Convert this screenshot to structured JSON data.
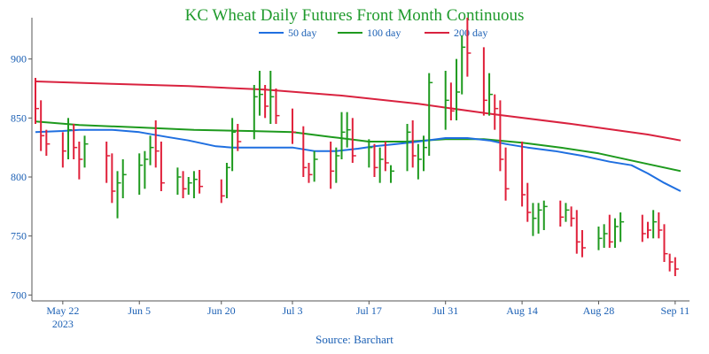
{
  "chart_data": {
    "type": "ohlc",
    "title": "KC Wheat Daily Futures Front Month Continuous",
    "source": "Source: Barchart",
    "colors": {
      "up": "#1e9a1e",
      "down": "#e0203a",
      "ma50": "#1f6fe0",
      "ma100": "#1e9a1e",
      "ma200": "#d9223f"
    },
    "legend": [
      {
        "label": "50 day",
        "color": "#1f6fe0",
        "key": "ma50"
      },
      {
        "label": "100 day",
        "color": "#1e9a1e",
        "key": "ma100"
      },
      {
        "label": "200 day",
        "color": "#d9223f",
        "key": "ma200"
      }
    ],
    "legend_position": "top-center",
    "x_start": "2023-05-17",
    "xlim": [
      "2023-05-17",
      "2023-09-12"
    ],
    "x_ticks": [
      {
        "date": "2023-05-22",
        "label": "May 22",
        "sub": "2023"
      },
      {
        "date": "2023-06-05",
        "label": "Jun 5"
      },
      {
        "date": "2023-06-20",
        "label": "Jun 20"
      },
      {
        "date": "2023-07-03",
        "label": "Jul 3"
      },
      {
        "date": "2023-07-17",
        "label": "Jul 17"
      },
      {
        "date": "2023-07-31",
        "label": "Jul 31"
      },
      {
        "date": "2023-08-14",
        "label": "Aug 14"
      },
      {
        "date": "2023-08-28",
        "label": "Aug 28"
      },
      {
        "date": "2023-09-11",
        "label": "Sep 11"
      }
    ],
    "ylim": [
      695,
      935
    ],
    "y_ticks": [
      700,
      750,
      800,
      850,
      900
    ],
    "grid": false,
    "bars": [
      {
        "date": "2023-05-17",
        "h": 884,
        "l": 845,
        "c": 858,
        "dir": "down"
      },
      {
        "date": "2023-05-18",
        "h": 865,
        "l": 822,
        "c": 835,
        "dir": "down"
      },
      {
        "date": "2023-05-19",
        "h": 840,
        "l": 818,
        "c": 828,
        "dir": "down"
      },
      {
        "date": "2023-05-22",
        "h": 838,
        "l": 808,
        "c": 822,
        "dir": "down"
      },
      {
        "date": "2023-05-23",
        "h": 850,
        "l": 815,
        "c": 840,
        "dir": "up"
      },
      {
        "date": "2023-05-24",
        "h": 845,
        "l": 815,
        "c": 825,
        "dir": "down"
      },
      {
        "date": "2023-05-25",
        "h": 830,
        "l": 798,
        "c": 815,
        "dir": "down"
      },
      {
        "date": "2023-05-26",
        "h": 835,
        "l": 808,
        "c": 828,
        "dir": "up"
      },
      {
        "date": "2023-05-30",
        "h": 830,
        "l": 795,
        "c": 818,
        "dir": "down"
      },
      {
        "date": "2023-05-31",
        "h": 820,
        "l": 778,
        "c": 788,
        "dir": "down"
      },
      {
        "date": "2023-06-01",
        "h": 805,
        "l": 765,
        "c": 795,
        "dir": "up"
      },
      {
        "date": "2023-06-02",
        "h": 815,
        "l": 782,
        "c": 802,
        "dir": "up"
      },
      {
        "date": "2023-06-05",
        "h": 820,
        "l": 785,
        "c": 810,
        "dir": "up"
      },
      {
        "date": "2023-06-06",
        "h": 822,
        "l": 790,
        "c": 815,
        "dir": "up"
      },
      {
        "date": "2023-06-07",
        "h": 835,
        "l": 810,
        "c": 825,
        "dir": "up"
      },
      {
        "date": "2023-06-08",
        "h": 848,
        "l": 808,
        "c": 822,
        "dir": "down"
      },
      {
        "date": "2023-06-09",
        "h": 830,
        "l": 788,
        "c": 795,
        "dir": "down"
      },
      {
        "date": "2023-06-12",
        "h": 808,
        "l": 785,
        "c": 800,
        "dir": "up"
      },
      {
        "date": "2023-06-13",
        "h": 805,
        "l": 782,
        "c": 790,
        "dir": "down"
      },
      {
        "date": "2023-06-14",
        "h": 800,
        "l": 785,
        "c": 795,
        "dir": "up"
      },
      {
        "date": "2023-06-15",
        "h": 805,
        "l": 782,
        "c": 798,
        "dir": "up"
      },
      {
        "date": "2023-06-16",
        "h": 806,
        "l": 786,
        "c": 792,
        "dir": "down"
      },
      {
        "date": "2023-06-20",
        "h": 798,
        "l": 778,
        "c": 784,
        "dir": "down"
      },
      {
        "date": "2023-06-21",
        "h": 812,
        "l": 782,
        "c": 808,
        "dir": "up"
      },
      {
        "date": "2023-06-22",
        "h": 850,
        "l": 805,
        "c": 838,
        "dir": "up"
      },
      {
        "date": "2023-06-23",
        "h": 845,
        "l": 822,
        "c": 830,
        "dir": "down"
      },
      {
        "date": "2023-06-26",
        "h": 878,
        "l": 832,
        "c": 868,
        "dir": "up"
      },
      {
        "date": "2023-06-27",
        "h": 890,
        "l": 852,
        "c": 870,
        "dir": "up"
      },
      {
        "date": "2023-06-28",
        "h": 878,
        "l": 850,
        "c": 860,
        "dir": "down"
      },
      {
        "date": "2023-06-29",
        "h": 890,
        "l": 845,
        "c": 868,
        "dir": "up"
      },
      {
        "date": "2023-06-30",
        "h": 875,
        "l": 845,
        "c": 852,
        "dir": "down"
      },
      {
        "date": "2023-07-03",
        "h": 858,
        "l": 828,
        "c": 838,
        "dir": "down"
      },
      {
        "date": "2023-07-05",
        "h": 843,
        "l": 800,
        "c": 808,
        "dir": "down"
      },
      {
        "date": "2023-07-06",
        "h": 812,
        "l": 795,
        "c": 802,
        "dir": "down"
      },
      {
        "date": "2023-07-07",
        "h": 822,
        "l": 796,
        "c": 815,
        "dir": "up"
      },
      {
        "date": "2023-07-10",
        "h": 830,
        "l": 790,
        "c": 805,
        "dir": "down"
      },
      {
        "date": "2023-07-11",
        "h": 825,
        "l": 795,
        "c": 818,
        "dir": "up"
      },
      {
        "date": "2023-07-12",
        "h": 855,
        "l": 815,
        "c": 838,
        "dir": "up"
      },
      {
        "date": "2023-07-13",
        "h": 855,
        "l": 825,
        "c": 840,
        "dir": "up"
      },
      {
        "date": "2023-07-14",
        "h": 850,
        "l": 812,
        "c": 818,
        "dir": "down"
      },
      {
        "date": "2023-07-17",
        "h": 832,
        "l": 808,
        "c": 825,
        "dir": "up"
      },
      {
        "date": "2023-07-18",
        "h": 828,
        "l": 800,
        "c": 808,
        "dir": "down"
      },
      {
        "date": "2023-07-19",
        "h": 825,
        "l": 795,
        "c": 815,
        "dir": "up"
      },
      {
        "date": "2023-07-20",
        "h": 830,
        "l": 805,
        "c": 812,
        "dir": "down"
      },
      {
        "date": "2023-07-21",
        "h": 810,
        "l": 795,
        "c": 805,
        "dir": "up"
      },
      {
        "date": "2023-07-24",
        "h": 845,
        "l": 805,
        "c": 838,
        "dir": "up"
      },
      {
        "date": "2023-07-25",
        "h": 848,
        "l": 808,
        "c": 818,
        "dir": "down"
      },
      {
        "date": "2023-07-26",
        "h": 828,
        "l": 798,
        "c": 815,
        "dir": "up"
      },
      {
        "date": "2023-07-27",
        "h": 835,
        "l": 805,
        "c": 825,
        "dir": "up"
      },
      {
        "date": "2023-07-28",
        "h": 888,
        "l": 818,
        "c": 880,
        "dir": "up"
      },
      {
        "date": "2023-07-31",
        "h": 890,
        "l": 840,
        "c": 865,
        "dir": "up"
      },
      {
        "date": "2023-08-01",
        "h": 880,
        "l": 848,
        "c": 856,
        "dir": "down"
      },
      {
        "date": "2023-08-02",
        "h": 900,
        "l": 848,
        "c": 872,
        "dir": "up"
      },
      {
        "date": "2023-08-03",
        "h": 920,
        "l": 870,
        "c": 910,
        "dir": "up"
      },
      {
        "date": "2023-08-04",
        "h": 935,
        "l": 885,
        "c": 905,
        "dir": "down"
      },
      {
        "date": "2023-08-07",
        "h": 910,
        "l": 852,
        "c": 865,
        "dir": "down"
      },
      {
        "date": "2023-08-08",
        "h": 888,
        "l": 852,
        "c": 870,
        "dir": "up"
      },
      {
        "date": "2023-08-09",
        "h": 870,
        "l": 840,
        "c": 858,
        "dir": "down"
      },
      {
        "date": "2023-08-10",
        "h": 865,
        "l": 805,
        "c": 815,
        "dir": "down"
      },
      {
        "date": "2023-08-11",
        "h": 825,
        "l": 780,
        "c": 790,
        "dir": "down"
      },
      {
        "date": "2023-08-14",
        "h": 830,
        "l": 775,
        "c": 785,
        "dir": "down"
      },
      {
        "date": "2023-08-15",
        "h": 795,
        "l": 762,
        "c": 770,
        "dir": "down"
      },
      {
        "date": "2023-08-16",
        "h": 778,
        "l": 750,
        "c": 765,
        "dir": "up"
      },
      {
        "date": "2023-08-17",
        "h": 778,
        "l": 752,
        "c": 772,
        "dir": "up"
      },
      {
        "date": "2023-08-18",
        "h": 780,
        "l": 755,
        "c": 775,
        "dir": "up"
      },
      {
        "date": "2023-08-21",
        "h": 780,
        "l": 758,
        "c": 766,
        "dir": "down"
      },
      {
        "date": "2023-08-22",
        "h": 778,
        "l": 762,
        "c": 772,
        "dir": "up"
      },
      {
        "date": "2023-08-23",
        "h": 775,
        "l": 758,
        "c": 765,
        "dir": "down"
      },
      {
        "date": "2023-08-24",
        "h": 772,
        "l": 735,
        "c": 745,
        "dir": "down"
      },
      {
        "date": "2023-08-25",
        "h": 755,
        "l": 732,
        "c": 740,
        "dir": "down"
      },
      {
        "date": "2023-08-28",
        "h": 758,
        "l": 738,
        "c": 748,
        "dir": "up"
      },
      {
        "date": "2023-08-29",
        "h": 760,
        "l": 740,
        "c": 752,
        "dir": "up"
      },
      {
        "date": "2023-08-30",
        "h": 768,
        "l": 740,
        "c": 745,
        "dir": "down"
      },
      {
        "date": "2023-08-31",
        "h": 765,
        "l": 740,
        "c": 758,
        "dir": "up"
      },
      {
        "date": "2023-09-01",
        "h": 770,
        "l": 745,
        "c": 762,
        "dir": "up"
      },
      {
        "date": "2023-09-05",
        "h": 768,
        "l": 745,
        "c": 752,
        "dir": "down"
      },
      {
        "date": "2023-09-06",
        "h": 762,
        "l": 748,
        "c": 755,
        "dir": "down"
      },
      {
        "date": "2023-09-07",
        "h": 772,
        "l": 748,
        "c": 762,
        "dir": "up"
      },
      {
        "date": "2023-09-08",
        "h": 770,
        "l": 748,
        "c": 755,
        "dir": "down"
      },
      {
        "date": "2023-09-09",
        "h": 760,
        "l": 728,
        "c": 735,
        "dir": "down"
      },
      {
        "date": "2023-09-10",
        "h": 735,
        "l": 720,
        "c": 728,
        "dir": "down"
      },
      {
        "date": "2023-09-11",
        "h": 732,
        "l": 716,
        "c": 722,
        "dir": "down"
      }
    ],
    "ma50": [
      {
        "date": "2023-05-17",
        "v": 838
      },
      {
        "date": "2023-05-22",
        "v": 839
      },
      {
        "date": "2023-05-25",
        "v": 840
      },
      {
        "date": "2023-05-31",
        "v": 840
      },
      {
        "date": "2023-06-05",
        "v": 838
      },
      {
        "date": "2023-06-10",
        "v": 834
      },
      {
        "date": "2023-06-14",
        "v": 831
      },
      {
        "date": "2023-06-19",
        "v": 826
      },
      {
        "date": "2023-06-22",
        "v": 825
      },
      {
        "date": "2023-06-28",
        "v": 825
      },
      {
        "date": "2023-07-03",
        "v": 825
      },
      {
        "date": "2023-07-07",
        "v": 822
      },
      {
        "date": "2023-07-11",
        "v": 822
      },
      {
        "date": "2023-07-15",
        "v": 824
      },
      {
        "date": "2023-07-18",
        "v": 826
      },
      {
        "date": "2023-07-22",
        "v": 828
      },
      {
        "date": "2023-07-26",
        "v": 830
      },
      {
        "date": "2023-07-31",
        "v": 833
      },
      {
        "date": "2023-08-04",
        "v": 833
      },
      {
        "date": "2023-08-08",
        "v": 831
      },
      {
        "date": "2023-08-11",
        "v": 828
      },
      {
        "date": "2023-08-15",
        "v": 825
      },
      {
        "date": "2023-08-20",
        "v": 822
      },
      {
        "date": "2023-08-25",
        "v": 818
      },
      {
        "date": "2023-08-30",
        "v": 813
      },
      {
        "date": "2023-09-03",
        "v": 810
      },
      {
        "date": "2023-09-06",
        "v": 803
      },
      {
        "date": "2023-09-09",
        "v": 795
      },
      {
        "date": "2023-09-12",
        "v": 788
      }
    ],
    "ma100": [
      {
        "date": "2023-05-17",
        "v": 847
      },
      {
        "date": "2023-05-25",
        "v": 844
      },
      {
        "date": "2023-06-05",
        "v": 842
      },
      {
        "date": "2023-06-15",
        "v": 840
      },
      {
        "date": "2023-06-25",
        "v": 839
      },
      {
        "date": "2023-07-03",
        "v": 838
      },
      {
        "date": "2023-07-10",
        "v": 834
      },
      {
        "date": "2023-07-17",
        "v": 830
      },
      {
        "date": "2023-07-24",
        "v": 830
      },
      {
        "date": "2023-07-31",
        "v": 832
      },
      {
        "date": "2023-08-07",
        "v": 832
      },
      {
        "date": "2023-08-14",
        "v": 829
      },
      {
        "date": "2023-08-21",
        "v": 825
      },
      {
        "date": "2023-08-28",
        "v": 820
      },
      {
        "date": "2023-09-04",
        "v": 813
      },
      {
        "date": "2023-09-12",
        "v": 805
      }
    ],
    "ma200": [
      {
        "date": "2023-05-17",
        "v": 881
      },
      {
        "date": "2023-05-31",
        "v": 879
      },
      {
        "date": "2023-06-14",
        "v": 877
      },
      {
        "date": "2023-06-28",
        "v": 874
      },
      {
        "date": "2023-07-12",
        "v": 869
      },
      {
        "date": "2023-07-26",
        "v": 862
      },
      {
        "date": "2023-08-09",
        "v": 853
      },
      {
        "date": "2023-08-23",
        "v": 845
      },
      {
        "date": "2023-09-06",
        "v": 836
      },
      {
        "date": "2023-09-12",
        "v": 831
      }
    ]
  }
}
